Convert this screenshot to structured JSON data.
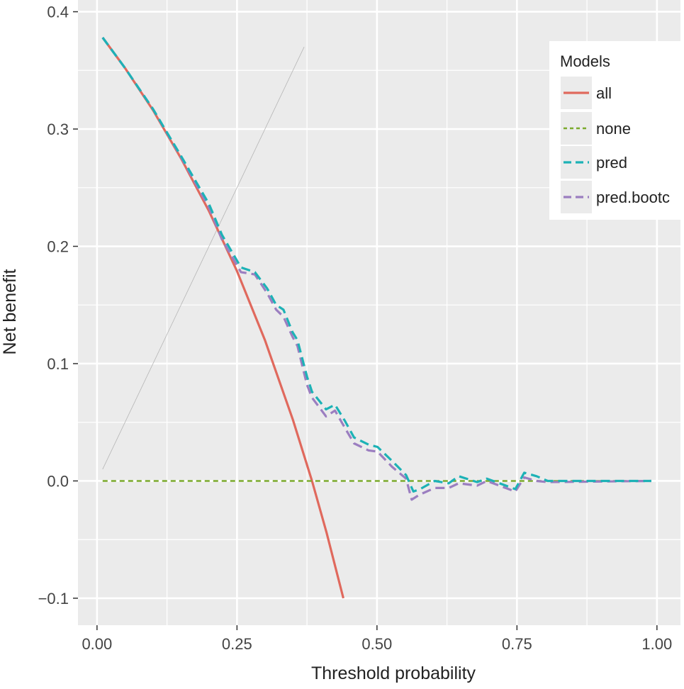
{
  "chart_data": {
    "type": "line",
    "title": "",
    "xlabel": "Threshold probability",
    "ylabel": "Net benefit",
    "xlim": [
      -0.034,
      1.042
    ],
    "ylim": [
      -0.123,
      0.41
    ],
    "xticks": [
      0,
      0.25,
      0.5,
      0.75,
      1
    ],
    "xtick_labels": [
      "0.00",
      "0.25",
      "0.50",
      "0.75",
      "1.00"
    ],
    "yticks": [
      -0.1,
      0,
      0.1,
      0.2,
      0.3,
      0.4
    ],
    "ytick_labels": [
      "−0.1",
      "0.0",
      "0.1",
      "0.2",
      "0.3",
      "0.4"
    ],
    "grid": true,
    "legend": {
      "title": "Models",
      "placement": "top-right"
    },
    "series": [
      {
        "name": "all",
        "color": "#E0695D",
        "dash": "solid",
        "x": [
          0.01,
          0.05,
          0.1,
          0.15,
          0.2,
          0.25,
          0.3,
          0.35,
          0.384,
          0.41,
          0.44
        ],
        "y": [
          0.378,
          0.352,
          0.316,
          0.275,
          0.23,
          0.179,
          0.12,
          0.052,
          0.0,
          -0.044,
          -0.1
        ]
      },
      {
        "name": "none",
        "color": "#7BAA2C",
        "dash": "dotted",
        "x": [
          0.01,
          0.99
        ],
        "y": [
          0,
          0
        ]
      },
      {
        "name": "pred",
        "color": "#1DB2B6",
        "dash": "dashed",
        "x": [
          0.01,
          0.05,
          0.1,
          0.15,
          0.2,
          0.223,
          0.257,
          0.282,
          0.304,
          0.32,
          0.333,
          0.349,
          0.358,
          0.375,
          0.384,
          0.409,
          0.425,
          0.443,
          0.459,
          0.485,
          0.501,
          0.527,
          0.552,
          0.565,
          0.577,
          0.603,
          0.628,
          0.646,
          0.679,
          0.696,
          0.747,
          0.763,
          0.785,
          0.805,
          0.99
        ],
        "y": [
          0.378,
          0.352,
          0.317,
          0.277,
          0.236,
          0.21,
          0.182,
          0.178,
          0.164,
          0.15,
          0.146,
          0.127,
          0.12,
          0.089,
          0.076,
          0.061,
          0.065,
          0.051,
          0.037,
          0.031,
          0.029,
          0.017,
          0.005,
          -0.009,
          -0.007,
          0.0,
          -0.002,
          0.004,
          -0.001,
          0.002,
          -0.007,
          0.007,
          0.004,
          0.0,
          0.0
        ]
      },
      {
        "name": "pred.bootc",
        "color": "#9B7EC0",
        "dash": "dashed",
        "x": [
          0.01,
          0.05,
          0.1,
          0.15,
          0.2,
          0.223,
          0.257,
          0.282,
          0.304,
          0.32,
          0.333,
          0.349,
          0.358,
          0.375,
          0.384,
          0.409,
          0.425,
          0.443,
          0.459,
          0.485,
          0.501,
          0.527,
          0.552,
          0.562,
          0.575,
          0.603,
          0.628,
          0.646,
          0.679,
          0.696,
          0.747,
          0.763,
          0.785,
          0.805,
          0.99
        ],
        "y": [
          0.378,
          0.352,
          0.317,
          0.276,
          0.233,
          0.206,
          0.178,
          0.176,
          0.16,
          0.146,
          0.14,
          0.123,
          0.115,
          0.082,
          0.071,
          0.055,
          0.06,
          0.045,
          0.032,
          0.026,
          0.025,
          0.012,
          0.002,
          -0.016,
          -0.012,
          -0.006,
          -0.006,
          -0.002,
          -0.004,
          0.0,
          -0.009,
          0.003,
          0.0,
          -0.001,
          0.0
        ]
      },
      {
        "name": "",
        "color": "#B5B5B5",
        "dash": "thin",
        "x": [
          0.01,
          0.37
        ],
        "y": [
          0.01,
          0.37
        ]
      }
    ]
  }
}
